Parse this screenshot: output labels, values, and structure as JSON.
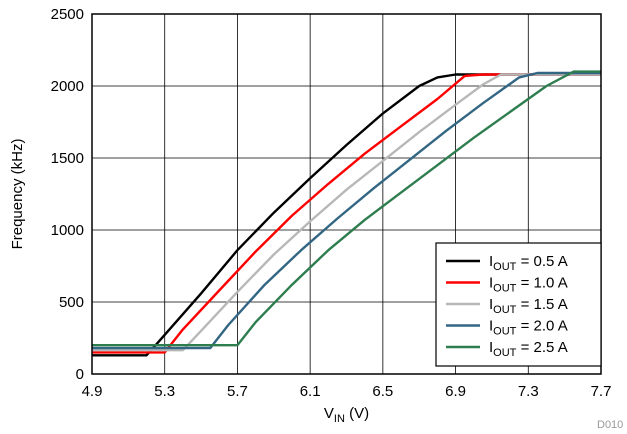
{
  "chart_data": {
    "type": "line",
    "xlabel": {
      "main": "V",
      "sub": "IN",
      "suffix": " (V)"
    },
    "ylabel": "Frequency (kHz)",
    "xlim": [
      4.9,
      7.7
    ],
    "ylim": [
      0,
      2500
    ],
    "x_ticks": [
      4.9,
      5.3,
      5.7,
      6.1,
      6.5,
      6.9,
      7.3,
      7.7
    ],
    "x_tick_labels": [
      "4.9",
      "5.3",
      "5.7",
      "6.1",
      "6.5",
      "6.9",
      "7.3",
      "7.7"
    ],
    "y_ticks": [
      0,
      500,
      1000,
      1500,
      2000,
      2500
    ],
    "y_tick_labels": [
      "0",
      "500",
      "1000",
      "1500",
      "2000",
      "2500"
    ],
    "grid": true,
    "legend_position": "bottom-right",
    "footnote": "D010",
    "series": [
      {
        "name": "I_OUT = 0.5 A",
        "legend_main": "I",
        "legend_sub": "OUT",
        "legend_rest": " = 0.5 A",
        "color": "#000000",
        "points": [
          [
            4.9,
            130
          ],
          [
            5.2,
            130
          ],
          [
            5.25,
            200
          ],
          [
            5.5,
            560
          ],
          [
            5.7,
            860
          ],
          [
            5.9,
            1120
          ],
          [
            6.1,
            1360
          ],
          [
            6.3,
            1590
          ],
          [
            6.5,
            1810
          ],
          [
            6.7,
            2000
          ],
          [
            6.8,
            2060
          ],
          [
            6.9,
            2080
          ],
          [
            7.7,
            2080
          ]
        ]
      },
      {
        "name": "I_OUT = 1.0 A",
        "legend_main": "I",
        "legend_sub": "OUT",
        "legend_rest": " = 1.0 A",
        "color": "#ff0000",
        "points": [
          [
            4.9,
            150
          ],
          [
            5.3,
            150
          ],
          [
            5.4,
            310
          ],
          [
            5.6,
            580
          ],
          [
            5.8,
            850
          ],
          [
            6.0,
            1100
          ],
          [
            6.2,
            1320
          ],
          [
            6.4,
            1530
          ],
          [
            6.6,
            1720
          ],
          [
            6.8,
            1910
          ],
          [
            6.95,
            2070
          ],
          [
            7.05,
            2080
          ],
          [
            7.7,
            2080
          ]
        ]
      },
      {
        "name": "I_OUT = 1.5 A",
        "legend_main": "I",
        "legend_sub": "OUT",
        "legend_rest": " = 1.5 A",
        "color": "#b8b8b8",
        "points": [
          [
            4.9,
            165
          ],
          [
            5.4,
            165
          ],
          [
            5.5,
            300
          ],
          [
            5.7,
            570
          ],
          [
            5.9,
            830
          ],
          [
            6.1,
            1060
          ],
          [
            6.3,
            1280
          ],
          [
            6.5,
            1480
          ],
          [
            6.7,
            1680
          ],
          [
            6.9,
            1870
          ],
          [
            7.05,
            2010
          ],
          [
            7.15,
            2080
          ],
          [
            7.7,
            2080
          ]
        ]
      },
      {
        "name": "I_OUT = 2.0 A",
        "legend_main": "I",
        "legend_sub": "OUT",
        "legend_rest": " = 2.0 A",
        "color": "#336683",
        "points": [
          [
            4.9,
            180
          ],
          [
            5.55,
            180
          ],
          [
            5.65,
            340
          ],
          [
            5.85,
            620
          ],
          [
            6.05,
            860
          ],
          [
            6.25,
            1080
          ],
          [
            6.45,
            1290
          ],
          [
            6.65,
            1490
          ],
          [
            6.85,
            1690
          ],
          [
            7.05,
            1880
          ],
          [
            7.25,
            2060
          ],
          [
            7.35,
            2090
          ],
          [
            7.7,
            2090
          ]
        ]
      },
      {
        "name": "I_OUT = 2.5 A",
        "legend_main": "I",
        "legend_sub": "OUT",
        "legend_rest": " = 2.5 A",
        "color": "#2e7d4f",
        "points": [
          [
            4.9,
            200
          ],
          [
            5.7,
            200
          ],
          [
            5.8,
            360
          ],
          [
            6.0,
            620
          ],
          [
            6.2,
            860
          ],
          [
            6.4,
            1070
          ],
          [
            6.6,
            1260
          ],
          [
            6.8,
            1450
          ],
          [
            7.0,
            1640
          ],
          [
            7.2,
            1820
          ],
          [
            7.4,
            2000
          ],
          [
            7.55,
            2100
          ],
          [
            7.7,
            2100
          ]
        ]
      }
    ]
  }
}
